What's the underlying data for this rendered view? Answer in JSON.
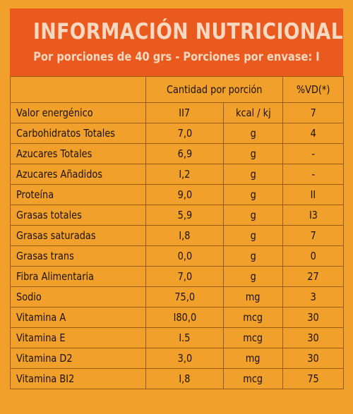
{
  "header": {
    "title": "INFORMACIÓN NUTRICIONAL",
    "subtitle": "Por porciones de 40 grs - Porciones por envase: I"
  },
  "table": {
    "headers": {
      "nutrient": "",
      "amount": "Cantidad por porción",
      "unit": "",
      "vd": "%VD(*)"
    },
    "rows": [
      {
        "nutrient": "Valor energénico",
        "amount": "II7",
        "unit": "kcal / kj",
        "vd": "7"
      },
      {
        "nutrient": "Carbohidratos Totales",
        "amount": "7,0",
        "unit": "g",
        "vd": "4"
      },
      {
        "nutrient": "Azucares Totales",
        "amount": "6,9",
        "unit": "g",
        "vd": "-"
      },
      {
        "nutrient": "Azucares Añadidos",
        "amount": "I,2",
        "unit": "g",
        "vd": "-"
      },
      {
        "nutrient": "Proteína",
        "amount": "9,0",
        "unit": "g",
        "vd": "II"
      },
      {
        "nutrient": "Grasas totales",
        "amount": "5,9",
        "unit": "g",
        "vd": "I3"
      },
      {
        "nutrient": "Grasas saturadas",
        "amount": "I,8",
        "unit": "g",
        "vd": "7"
      },
      {
        "nutrient": "Grasas trans",
        "amount": "0,0",
        "unit": "g",
        "vd": "0"
      },
      {
        "nutrient": "Fibra Alimentaria",
        "amount": "7,0",
        "unit": "g",
        "vd": "27"
      },
      {
        "nutrient": "Sodio",
        "amount": "75,0",
        "unit": "mg",
        "vd": "3"
      },
      {
        "nutrient": "Vitamina A",
        "amount": "I80,0",
        "unit": "mcg",
        "vd": "30"
      },
      {
        "nutrient": "Vitamina E",
        "amount": "I.5",
        "unit": "mcg",
        "vd": "30"
      },
      {
        "nutrient": "Vitamina D2",
        "amount": "3,0",
        "unit": "mg",
        "vd": "30"
      },
      {
        "nutrient": "Vitamina BI2",
        "amount": "I,8",
        "unit": "mcg",
        "vd": "75"
      }
    ]
  },
  "colors": {
    "background": "#f0a02b",
    "header_band": "#ea5a1e",
    "header_text": "#f7d9c2",
    "border": "#9a5a14",
    "body_text": "#1c1206"
  }
}
